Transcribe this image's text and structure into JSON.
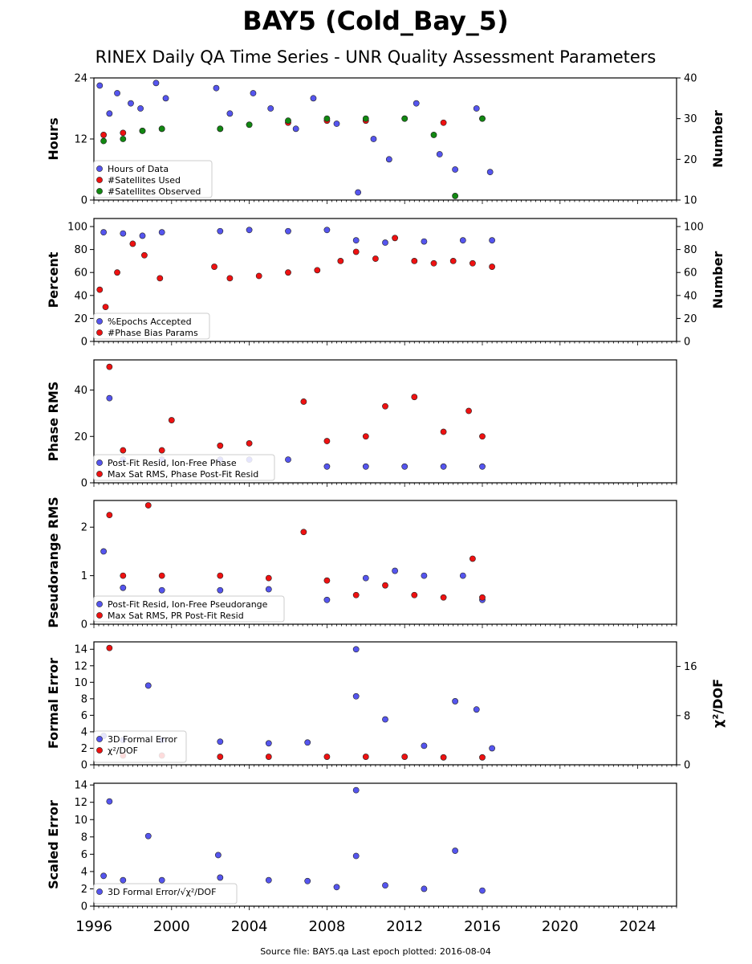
{
  "title": "BAY5 (Cold_Bay_5)",
  "subtitle": "RINEX Daily QA Time Series - UNR Quality Assessment Parameters",
  "footer": "Source file: BAY5.qa Last epoch plotted: 2016-08-04",
  "colors": {
    "blue": "#5555ee",
    "red": "#ee1111",
    "green": "#118811",
    "edge": "#222222"
  },
  "chart_data": [
    {
      "type": "scatter",
      "ylabel": "Hours",
      "ylabel_right": "Number",
      "yticks": [
        "0",
        "12",
        "24"
      ],
      "ylim": [
        0,
        24
      ],
      "yticks_right": [
        "10",
        "20",
        "30",
        "40"
      ],
      "ylim_right": [
        10,
        40
      ],
      "xlim": [
        1996,
        2026
      ],
      "series": [
        {
          "name": "Hours of Data",
          "color": "blue",
          "axis": "left",
          "points": [
            [
              1996.3,
              22.5
            ],
            [
              1996.8,
              17
            ],
            [
              1997.2,
              21
            ],
            [
              1997.9,
              19
            ],
            [
              1998.4,
              18
            ],
            [
              1999.2,
              23
            ],
            [
              1999.7,
              20
            ],
            [
              2002.3,
              22
            ],
            [
              2003,
              17
            ],
            [
              2004.2,
              21
            ],
            [
              2005.1,
              18
            ],
            [
              2006.4,
              14
            ],
            [
              2007.3,
              20
            ],
            [
              2008.5,
              15
            ],
            [
              2009.6,
              1.5
            ],
            [
              2010.4,
              12
            ],
            [
              2011.2,
              8
            ],
            [
              2012.6,
              19
            ],
            [
              2013.8,
              9
            ],
            [
              2014.6,
              6
            ],
            [
              2015.7,
              18
            ],
            [
              2016.4,
              5.5
            ]
          ]
        },
        {
          "name": "#Satellites Used",
          "color": "red",
          "axis": "right",
          "points": [
            [
              1996.5,
              26
            ],
            [
              1997.5,
              26.5
            ],
            [
              1998.5,
              27
            ],
            [
              1999.5,
              27.5
            ],
            [
              2002.5,
              27.5
            ],
            [
              2004,
              28.5
            ],
            [
              2006,
              29
            ],
            [
              2008,
              29.5
            ],
            [
              2010,
              29.5
            ],
            [
              2012,
              30
            ],
            [
              2014,
              29
            ],
            [
              2016,
              30
            ]
          ]
        },
        {
          "name": "#Satellites Observed",
          "color": "green",
          "axis": "right",
          "points": [
            [
              1996.5,
              24.5
            ],
            [
              1997.5,
              25
            ],
            [
              1998.5,
              27
            ],
            [
              1999.5,
              27.5
            ],
            [
              2002.5,
              27.5
            ],
            [
              2004,
              28.5
            ],
            [
              2006,
              29.5
            ],
            [
              2008,
              30
            ],
            [
              2010,
              30
            ],
            [
              2012,
              30
            ],
            [
              2013.5,
              26
            ],
            [
              2014.6,
              11
            ],
            [
              2016,
              30
            ]
          ]
        }
      ],
      "legend": [
        "Hours of Data",
        "#Satellites Used",
        "#Satellites Observed"
      ]
    },
    {
      "type": "scatter",
      "ylabel": "Percent",
      "ylabel_right": "Number",
      "yticks": [
        "0",
        "20",
        "40",
        "60",
        "80",
        "100"
      ],
      "ylim": [
        0,
        107
      ],
      "yticks_right": [
        "0",
        "20",
        "40",
        "60",
        "80",
        "100"
      ],
      "ylim_right": [
        0,
        107
      ],
      "xlim": [
        1996,
        2026
      ],
      "series": [
        {
          "name": "%Epochs Accepted",
          "color": "blue",
          "axis": "left",
          "points": [
            [
              1996.5,
              95
            ],
            [
              1997.5,
              94
            ],
            [
              1998.5,
              92
            ],
            [
              1999.5,
              95
            ],
            [
              2002.5,
              96
            ],
            [
              2004,
              97
            ],
            [
              2006,
              96
            ],
            [
              2008,
              97
            ],
            [
              2009.5,
              88
            ],
            [
              2011,
              86
            ],
            [
              2013,
              87
            ],
            [
              2015,
              88
            ],
            [
              2016.5,
              88
            ]
          ]
        },
        {
          "name": "#Phase Bias Params",
          "color": "red",
          "axis": "right",
          "points": [
            [
              1996.3,
              45
            ],
            [
              1996.6,
              30
            ],
            [
              1997.2,
              60
            ],
            [
              1998,
              85
            ],
            [
              1998.6,
              75
            ],
            [
              1999.4,
              55
            ],
            [
              2002.2,
              65
            ],
            [
              2003,
              55
            ],
            [
              2004.5,
              57
            ],
            [
              2006,
              60
            ],
            [
              2007.5,
              62
            ],
            [
              2008.7,
              70
            ],
            [
              2009.5,
              78
            ],
            [
              2010.5,
              72
            ],
            [
              2011.5,
              90
            ],
            [
              2012.5,
              70
            ],
            [
              2013.5,
              68
            ],
            [
              2014.5,
              70
            ],
            [
              2015.5,
              68
            ],
            [
              2016.5,
              65
            ]
          ]
        }
      ],
      "legend": [
        "%Epochs Accepted",
        "#Phase Bias Params"
      ]
    },
    {
      "type": "scatter",
      "ylabel": "Phase RMS",
      "yticks": [
        "0",
        "20",
        "40"
      ],
      "ylim": [
        0,
        53
      ],
      "xlim": [
        1996,
        2026
      ],
      "series": [
        {
          "name": "Post-Fit Resid, Ion-Free Phase",
          "color": "blue",
          "axis": "left",
          "points": [
            [
              1996.8,
              36.5
            ],
            [
              1997.5,
              10
            ],
            [
              1999.5,
              10
            ],
            [
              2002.5,
              10
            ],
            [
              2004,
              10
            ],
            [
              2006,
              10
            ],
            [
              2008,
              7
            ],
            [
              2010,
              7
            ],
            [
              2012,
              7
            ],
            [
              2014,
              7
            ],
            [
              2016,
              7
            ]
          ]
        },
        {
          "name": "Max Sat RMS, Phase Post-Fit Resid",
          "color": "red",
          "axis": "left",
          "points": [
            [
              1996.8,
              50
            ],
            [
              1997.5,
              14
            ],
            [
              1999.5,
              14
            ],
            [
              2000,
              27
            ],
            [
              2002.5,
              16
            ],
            [
              2004,
              17
            ],
            [
              2006.8,
              35
            ],
            [
              2008,
              18
            ],
            [
              2010,
              20
            ],
            [
              2011,
              33
            ],
            [
              2012.5,
              37
            ],
            [
              2014,
              22
            ],
            [
              2015.3,
              31
            ],
            [
              2016,
              20
            ]
          ]
        }
      ],
      "legend": [
        "Post-Fit Resid, Ion-Free Phase",
        "Max Sat RMS, Phase Post-Fit Resid"
      ]
    },
    {
      "type": "scatter",
      "ylabel": "Pseudorange RMS",
      "yticks": [
        "0",
        "1",
        "2"
      ],
      "ylim": [
        0,
        2.55
      ],
      "xlim": [
        1996,
        2026
      ],
      "series": [
        {
          "name": "Post-Fit Resid, Ion-Free Pseudorange",
          "color": "blue",
          "axis": "left",
          "points": [
            [
              1996.5,
              1.5
            ],
            [
              1997.5,
              0.75
            ],
            [
              1999.5,
              0.7
            ],
            [
              2002.5,
              0.7
            ],
            [
              2005,
              0.72
            ],
            [
              2008,
              0.5
            ],
            [
              2010,
              0.95
            ],
            [
              2011.5,
              1.1
            ],
            [
              2013,
              1.0
            ],
            [
              2015,
              1.0
            ],
            [
              2016,
              0.5
            ]
          ]
        },
        {
          "name": "Max Sat RMS, PR Post-Fit Resid",
          "color": "red",
          "axis": "left",
          "points": [
            [
              1996.8,
              2.25
            ],
            [
              1997.5,
              1.0
            ],
            [
              1998.8,
              2.45
            ],
            [
              1999.5,
              1.0
            ],
            [
              2002.5,
              1.0
            ],
            [
              2005,
              0.95
            ],
            [
              2006.8,
              1.9
            ],
            [
              2008,
              0.9
            ],
            [
              2009.5,
              0.6
            ],
            [
              2011,
              0.8
            ],
            [
              2012.5,
              0.6
            ],
            [
              2014,
              0.55
            ],
            [
              2015.5,
              1.35
            ],
            [
              2016,
              0.55
            ]
          ]
        }
      ],
      "legend": [
        "Post-Fit Resid, Ion-Free Pseudorange",
        "Max Sat RMS, PR Post-Fit Resid"
      ]
    },
    {
      "type": "scatter",
      "ylabel": "Formal Error",
      "ylabel_right": "χ²/DOF",
      "yticks": [
        "0",
        "2",
        "4",
        "6",
        "8",
        "10",
        "12",
        "14"
      ],
      "ylim": [
        0,
        14.9
      ],
      "yticks_right": [
        "0",
        "8",
        "16"
      ],
      "ylim_right": [
        0,
        20
      ],
      "xlim": [
        1996,
        2026
      ],
      "series": [
        {
          "name": "3D Formal Error",
          "color": "blue",
          "axis": "left",
          "points": [
            [
              1996.5,
              3.5
            ],
            [
              1997.5,
              3
            ],
            [
              1998.8,
              9.6
            ],
            [
              1999.5,
              3
            ],
            [
              2002.5,
              2.8
            ],
            [
              2005,
              2.6
            ],
            [
              2007,
              2.7
            ],
            [
              2009.5,
              14
            ],
            [
              2009.5,
              8.3
            ],
            [
              2011,
              5.5
            ],
            [
              2013,
              2.3
            ],
            [
              2014.6,
              7.7
            ],
            [
              2015.7,
              6.7
            ],
            [
              2016.5,
              2
            ]
          ]
        },
        {
          "name": "χ²/DOF",
          "color": "red",
          "axis": "right",
          "points": [
            [
              1996.8,
              19
            ],
            [
              1997.5,
              1.5
            ],
            [
              1999.5,
              1.5
            ],
            [
              2002.5,
              1.3
            ],
            [
              2005,
              1.3
            ],
            [
              2008,
              1.3
            ],
            [
              2010,
              1.3
            ],
            [
              2012,
              1.3
            ],
            [
              2014,
              1.2
            ],
            [
              2016,
              1.2
            ]
          ]
        }
      ],
      "legend": [
        "3D Formal Error",
        "χ²/DOF"
      ]
    },
    {
      "type": "scatter",
      "ylabel": "Scaled Error",
      "yticks": [
        "0",
        "2",
        "4",
        "6",
        "8",
        "10",
        "12",
        "14"
      ],
      "ylim": [
        0,
        14.2
      ],
      "xlim": [
        1996,
        2026
      ],
      "series": [
        {
          "name": "3D Formal Error/√χ²/DOF",
          "color": "blue",
          "axis": "left",
          "points": [
            [
              1996.5,
              3.5
            ],
            [
              1996.8,
              12.1
            ],
            [
              1997.5,
              3
            ],
            [
              1998.8,
              8.1
            ],
            [
              1999.5,
              3
            ],
            [
              2002.5,
              3.3
            ],
            [
              2002.4,
              5.9
            ],
            [
              2005,
              3
            ],
            [
              2007,
              2.9
            ],
            [
              2008.5,
              2.2
            ],
            [
              2009.5,
              13.4
            ],
            [
              2009.5,
              5.8
            ],
            [
              2011,
              2.4
            ],
            [
              2013,
              2
            ],
            [
              2014.6,
              6.4
            ],
            [
              2016,
              1.8
            ]
          ]
        }
      ],
      "legend": [
        "3D Formal Error/√χ²/DOF"
      ]
    }
  ],
  "xticks": [
    "1996",
    "2000",
    "2004",
    "2008",
    "2012",
    "2016",
    "2020",
    "2024"
  ]
}
